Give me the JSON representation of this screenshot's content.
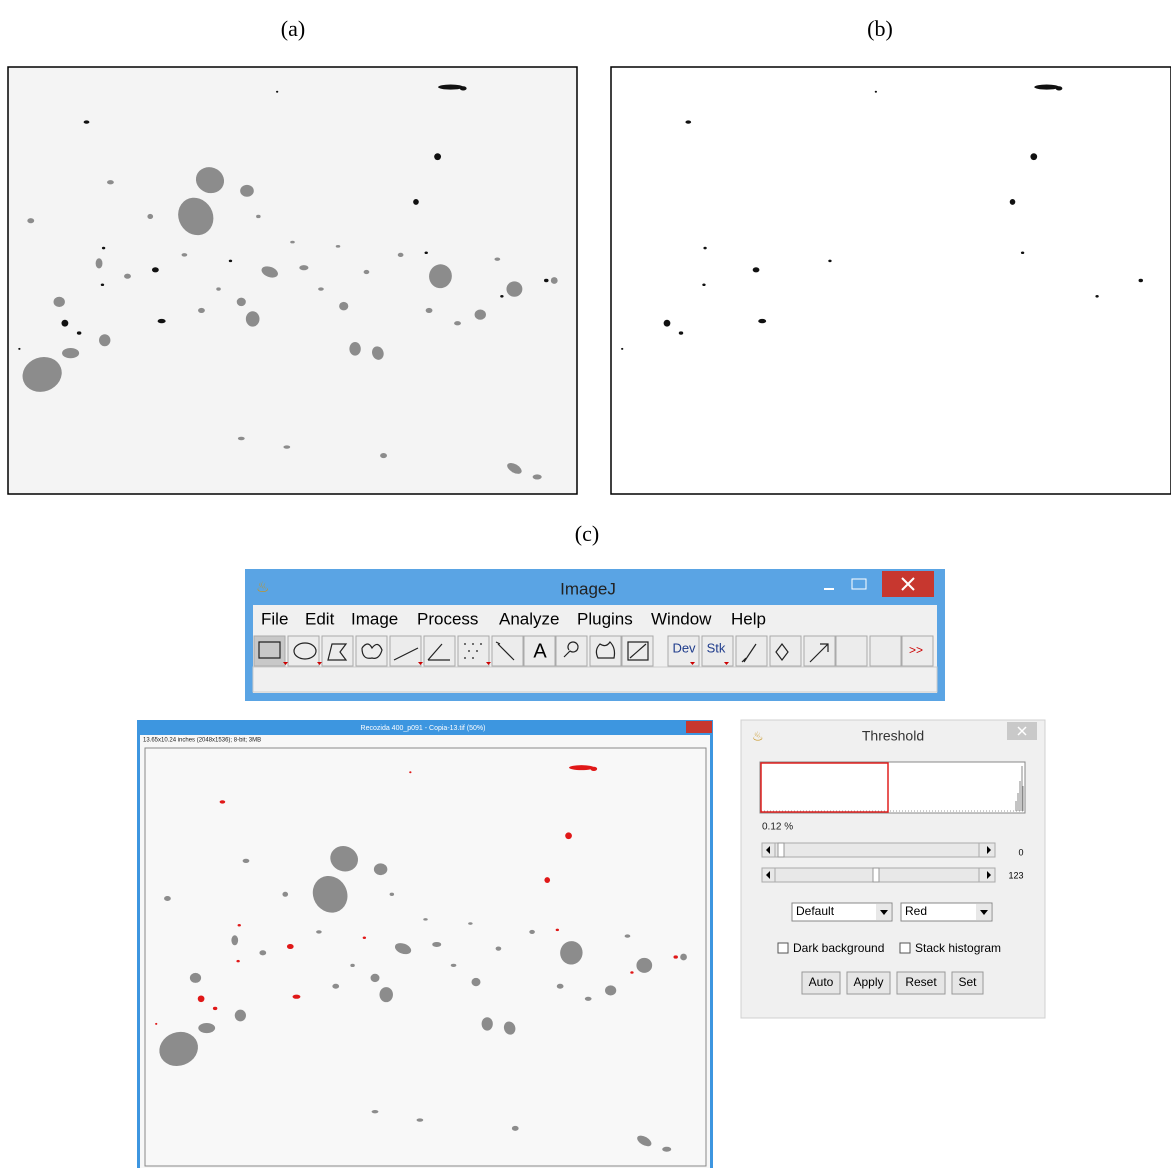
{
  "labels": {
    "a": "(a)",
    "b": "(b)",
    "c": "(c)"
  },
  "imagej": {
    "title": "ImageJ",
    "menu": [
      "File",
      "Edit",
      "Image",
      "Process",
      "Analyze",
      "Plugins",
      "Window",
      "Help"
    ],
    "tools": [
      "A",
      "Dev",
      "Stk",
      ">>"
    ]
  },
  "image_window": {
    "title": "Recozida 400_p091 - Copia-13.tif (50%)",
    "info": "13.65x10.24 inches (2048x1536); 8-bit; 3MB"
  },
  "threshold": {
    "title": "Threshold",
    "percent": "0.12 %",
    "min": 0,
    "max": 123,
    "method": "Default",
    "mode": "Red",
    "checkboxes": [
      "Dark background",
      "Stack histogram"
    ],
    "buttons": [
      "Auto",
      "Apply",
      "Reset",
      "Set"
    ]
  }
}
